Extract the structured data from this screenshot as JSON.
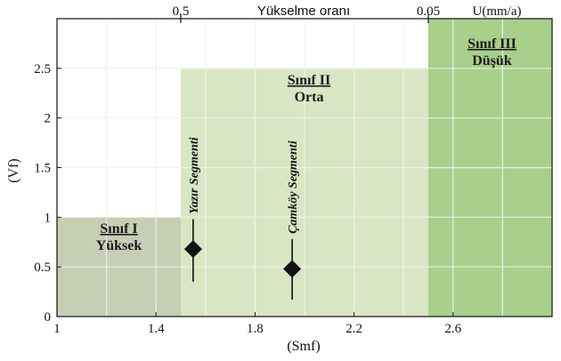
{
  "chart_data": {
    "type": "scatter",
    "title": "",
    "xlabel": "(Smf)",
    "ylabel": "(Vf)",
    "xlim": [
      1.0,
      3.0
    ],
    "ylim": [
      0,
      3.0
    ],
    "x_ticks": [
      1,
      1.4,
      1.8,
      2.2,
      2.6
    ],
    "x_tick_labels": [
      "1",
      "1.4",
      "1.8",
      "2.2",
      "2.6"
    ],
    "y_ticks": [
      0,
      0.5,
      1,
      1.5,
      2,
      2.5
    ],
    "y_tick_labels": [
      "0",
      "0.5",
      "1",
      "1.5",
      "2",
      "2.5"
    ],
    "grid": true,
    "top_axis": {
      "label": "Yükselme oranı",
      "unit": "U(mm/a)",
      "ticks": [
        {
          "x": 1.5,
          "label": "0.5"
        },
        {
          "x": 2.5,
          "label": "0.05"
        }
      ]
    },
    "zones": [
      {
        "name": "Sınıf I",
        "subtitle": "Yüksek",
        "x": [
          1.0,
          1.5
        ],
        "y": [
          0,
          1.0
        ],
        "color": "#c6cfb4"
      },
      {
        "name": "Sınıf II",
        "subtitle": "Orta",
        "x": [
          1.5,
          2.5
        ],
        "y": [
          0,
          2.5
        ],
        "color": "#d9e6c3"
      },
      {
        "name": "Sınıf III",
        "subtitle": "Düşük",
        "x": [
          2.5,
          3.0
        ],
        "y": [
          0,
          3.0
        ],
        "color": "#a8d08a"
      }
    ],
    "points": [
      {
        "name": "Yazır Segmenti",
        "x": 1.55,
        "y": 0.68,
        "y_min": 0.35,
        "y_max": 0.98
      },
      {
        "name": "Çamköy Segmenti",
        "x": 1.95,
        "y": 0.48,
        "y_min": 0.17,
        "y_max": 0.78
      }
    ]
  }
}
